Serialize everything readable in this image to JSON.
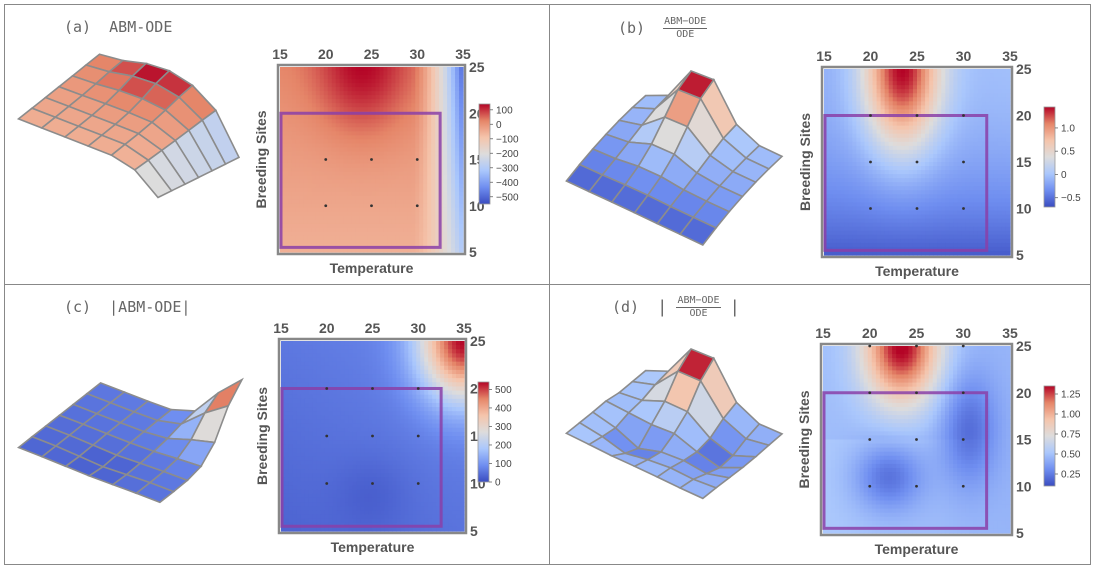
{
  "colors": {
    "grid_border": "#888888",
    "region_box": "#8a3fa8",
    "frame_dark": "#666666",
    "colormap": [
      "#3a4cc0",
      "#6f8ef0",
      "#aac7fc",
      "#dddcdc",
      "#f5c4ab",
      "#e58568",
      "#b40426"
    ]
  },
  "axes_labels": {
    "x_label": "Temperature",
    "y_label": "Breeding Sites",
    "x_ticks": [
      "15",
      "20",
      "25",
      "30",
      "35"
    ],
    "y_ticks": [
      "25",
      "20",
      "15",
      "10",
      "5"
    ]
  },
  "chart_data": [
    {
      "id": "a",
      "type": "heatmap",
      "title_prefix": "(a)",
      "title": "ABM-ODE",
      "xlabel": "Temperature",
      "ylabel": "Breeding Sites",
      "xlim": [
        15,
        35
      ],
      "ylim": [
        5,
        25
      ],
      "colorbar_ticks": [
        "100",
        "0",
        "−100",
        "−200",
        "−300",
        "−400",
        "−500"
      ],
      "colorbar_values": [
        100,
        0,
        -100,
        -200,
        -300,
        -400,
        -500
      ],
      "value_range": [
        -550,
        140
      ],
      "region_box": {
        "x": [
          15,
          32.5
        ],
        "y": [
          5.5,
          20
        ]
      },
      "sample_points": [
        [
          20,
          15
        ],
        [
          25,
          15
        ],
        [
          30,
          15
        ],
        [
          20,
          10
        ],
        [
          25,
          10
        ],
        [
          30,
          10
        ]
      ]
    },
    {
      "id": "b",
      "type": "heatmap",
      "title_prefix": "(b)",
      "title_num": "ABM−ODE",
      "title_den": "ODE",
      "xlabel": "Temperature",
      "ylabel": "Breeding Sites",
      "xlim": [
        15,
        35
      ],
      "ylim": [
        5,
        25
      ],
      "colorbar_ticks": [
        "1.0",
        "0.5",
        "0",
        "−0.5"
      ],
      "colorbar_values": [
        1.0,
        0.5,
        0,
        -0.5
      ],
      "value_range": [
        -0.7,
        1.45
      ],
      "region_box": {
        "x": [
          15,
          32.5
        ],
        "y": [
          5.5,
          20
        ]
      },
      "sample_points": [
        [
          20,
          20
        ],
        [
          25,
          20
        ],
        [
          30,
          20
        ],
        [
          20,
          15
        ],
        [
          25,
          15
        ],
        [
          30,
          15
        ],
        [
          20,
          10
        ],
        [
          25,
          10
        ],
        [
          30,
          10
        ]
      ]
    },
    {
      "id": "c",
      "type": "heatmap",
      "title_prefix": "(c)",
      "title": "|ABM-ODE|",
      "xlabel": "Temperature",
      "ylabel": "Breeding Sites",
      "xlim": [
        15,
        35
      ],
      "ylim": [
        5,
        25
      ],
      "colorbar_ticks": [
        "500",
        "400",
        "300",
        "200",
        "100",
        "0"
      ],
      "colorbar_values": [
        500,
        400,
        300,
        200,
        100,
        0
      ],
      "value_range": [
        0,
        540
      ],
      "region_box": {
        "x": [
          15,
          32.5
        ],
        "y": [
          5.5,
          20
        ]
      },
      "sample_points": [
        [
          20,
          20
        ],
        [
          25,
          20
        ],
        [
          30,
          20
        ],
        [
          20,
          15
        ],
        [
          25,
          15
        ],
        [
          30,
          15
        ],
        [
          20,
          10
        ],
        [
          25,
          10
        ],
        [
          30,
          10
        ]
      ]
    },
    {
      "id": "d",
      "type": "heatmap",
      "title_prefix": "(d)",
      "title_num": "ABM−ODE",
      "title_den": "ODE",
      "title_abs": true,
      "xlabel": "Temperature",
      "ylabel": "Breeding Sites",
      "xlim": [
        15,
        35
      ],
      "ylim": [
        5,
        25
      ],
      "colorbar_ticks": [
        "1.25",
        "1.00",
        "0.75",
        "0.50",
        "0.25"
      ],
      "colorbar_values": [
        1.25,
        1.0,
        0.75,
        0.5,
        0.25
      ],
      "value_range": [
        0.1,
        1.35
      ],
      "region_box": {
        "x": [
          15,
          32.5
        ],
        "y": [
          5.5,
          20
        ]
      },
      "sample_points": [
        [
          20,
          25
        ],
        [
          25,
          25
        ],
        [
          30,
          25
        ],
        [
          20,
          20
        ],
        [
          25,
          20
        ],
        [
          30,
          20
        ],
        [
          20,
          15
        ],
        [
          25,
          15
        ],
        [
          30,
          15
        ],
        [
          20,
          10
        ],
        [
          25,
          10
        ],
        [
          30,
          10
        ]
      ]
    }
  ]
}
